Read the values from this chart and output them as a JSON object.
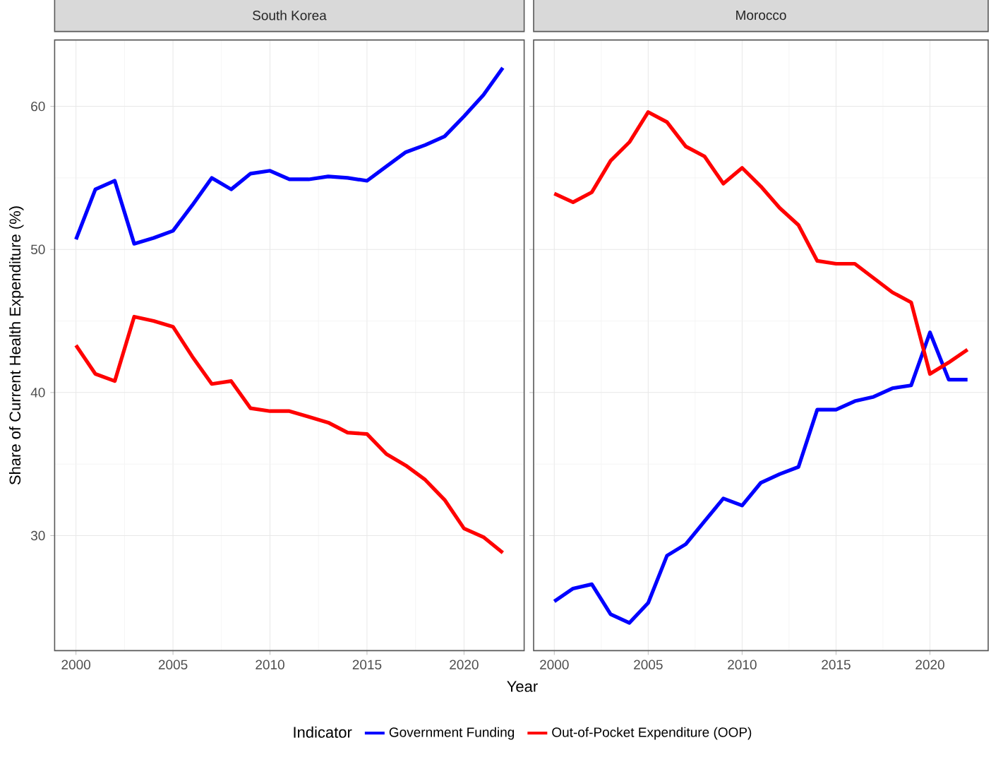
{
  "chart_data": [
    {
      "type": "line",
      "title": "South Korea",
      "xlabel": "Year",
      "ylabel": "Share of Current Health Expenditure (%)",
      "legend_title": "Indicator",
      "legend": "bottom",
      "grid": true,
      "x": [
        2000,
        2001,
        2002,
        2003,
        2004,
        2005,
        2006,
        2007,
        2008,
        2009,
        2010,
        2011,
        2012,
        2013,
        2014,
        2015,
        2016,
        2017,
        2018,
        2019,
        2020,
        2021,
        2022
      ],
      "xlim": [
        1998.9,
        2023.1
      ],
      "ylim": [
        21.96,
        64.64
      ],
      "xticks": [
        2000,
        2005,
        2010,
        2015,
        2020
      ],
      "yticks": [
        30,
        40,
        50,
        60
      ],
      "series": [
        {
          "name": "Government Funding",
          "color": "#0000ff",
          "values": [
            50.7,
            54.2,
            54.8,
            50.4,
            50.8,
            51.3,
            53.1,
            55.0,
            54.2,
            55.3,
            55.5,
            54.9,
            54.9,
            55.1,
            55.0,
            54.8,
            55.8,
            56.8,
            57.3,
            57.9,
            59.3,
            60.8,
            62.7
          ]
        },
        {
          "name": "Out-of-Pocket Expenditure (OOP)",
          "color": "#ff0000",
          "values": [
            43.3,
            41.3,
            40.8,
            45.3,
            45.0,
            44.6,
            42.5,
            40.6,
            40.8,
            38.9,
            38.7,
            38.7,
            38.3,
            37.9,
            37.2,
            37.1,
            35.7,
            34.9,
            33.9,
            32.5,
            30.5,
            29.9,
            28.8
          ]
        }
      ]
    },
    {
      "type": "line",
      "title": "Morocco",
      "grid": true,
      "tick_labels": "x",
      "x": [
        2000,
        2001,
        2002,
        2003,
        2004,
        2005,
        2006,
        2007,
        2008,
        2009,
        2010,
        2011,
        2012,
        2013,
        2014,
        2015,
        2016,
        2017,
        2018,
        2019,
        2020,
        2021,
        2022
      ],
      "xlim": [
        1998.9,
        2023.1
      ],
      "ylim": [
        21.96,
        64.64
      ],
      "xticks": [
        2000,
        2005,
        2010,
        2015,
        2020
      ],
      "yticks": [
        30,
        40,
        50,
        60
      ],
      "series": [
        {
          "color": "#0000ff",
          "values": [
            25.4,
            26.3,
            26.6,
            24.5,
            23.9,
            25.3,
            28.6,
            29.4,
            31.0,
            32.6,
            32.1,
            33.7,
            34.3,
            34.8,
            38.8,
            38.8,
            39.4,
            39.7,
            40.3,
            40.5,
            44.2,
            40.9,
            40.9
          ]
        },
        {
          "color": "#ff0000",
          "values": [
            53.9,
            53.3,
            54.0,
            56.2,
            57.5,
            59.6,
            58.9,
            57.2,
            56.5,
            54.6,
            55.7,
            54.4,
            52.9,
            51.7,
            49.2,
            49.0,
            49.0,
            48.0,
            47.0,
            46.3,
            41.3,
            42.1,
            43.0
          ]
        }
      ]
    }
  ]
}
